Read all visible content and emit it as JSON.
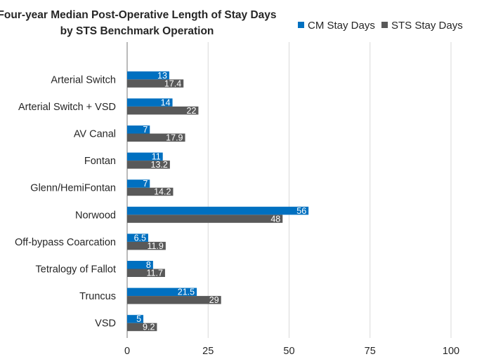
{
  "chart_data": {
    "type": "bar",
    "orientation": "horizontal",
    "title": [
      "Four-year Median Post-Operative Length of Stay Days",
      "by STS Benchmark Operation"
    ],
    "xlabel": "",
    "ylabel": "",
    "xlim": [
      0,
      100
    ],
    "x_ticks": [
      0,
      25,
      50,
      75,
      100
    ],
    "grid": "vertical",
    "legend_position": "top-right",
    "categories": [
      "Arterial Switch",
      "Arterial Switch + VSD",
      "AV Canal",
      "Fontan",
      "Glenn/HemiFontan",
      "Norwood",
      "Off-bypass Coarcation",
      "Tetralogy of Fallot",
      "Truncus",
      "VSD"
    ],
    "series": [
      {
        "name": "CM Stay Days",
        "color": "#0070c0",
        "values": [
          13,
          14,
          7,
          11,
          7,
          56,
          6.5,
          8,
          21.5,
          5
        ]
      },
      {
        "name": "STS Stay Days",
        "color": "#595959",
        "values": [
          17.4,
          22,
          17.9,
          13.2,
          14.2,
          48,
          11.9,
          11.7,
          29,
          9.2
        ]
      }
    ]
  }
}
